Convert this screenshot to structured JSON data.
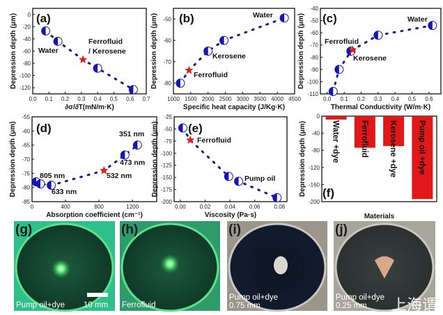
{
  "colors": {
    "marker": "#1515b0",
    "star": "#e02020",
    "bar": "#e01818",
    "fit_line": "#1a1a8a"
  },
  "chart_data": [
    {
      "panel": "(a)",
      "type": "scatter",
      "xlabel": "∂σ/∂T(mN/m·K)",
      "ylabel": "Depression depth (μm)",
      "xlim": [
        0,
        0.7
      ],
      "ylim": [
        -130,
        10
      ],
      "xticks": [
        "0.0",
        "0.1",
        "0.2",
        "0.3",
        "0.4",
        "0.5",
        "0.6",
        "0.7"
      ],
      "yticks": [
        "0",
        "-20",
        "-40",
        "-60",
        "-80",
        "-100",
        "-120"
      ],
      "points": [
        [
          0.08,
          -27
        ],
        [
          0.155,
          -44
        ],
        [
          0.4,
          -88
        ],
        [
          0.62,
          -123
        ]
      ],
      "star": [
        0.31,
        -74
      ],
      "annotations": [
        "Water",
        "Ferrofluid",
        "/ Kerosene"
      ]
    },
    {
      "panel": "(b)",
      "type": "scatter",
      "xlabel": "Specific heat capacity (J/Kg·K)",
      "ylabel": "Depression depth (μm)",
      "xlim": [
        1000,
        4500
      ],
      "ylim": [
        -85,
        -45
      ],
      "xticks": [
        "1000",
        "1500",
        "2000",
        "2500",
        "3000",
        "3500",
        "4000",
        "4500"
      ],
      "yticks": [
        "-50",
        "-60",
        "-70",
        "-80"
      ],
      "points": [
        [
          1200,
          -80
        ],
        [
          2000,
          -65
        ],
        [
          2460,
          -60
        ],
        [
          4200,
          -49.5
        ]
      ],
      "star": [
        1450,
        -74
      ],
      "annotations": [
        "Water",
        "Kerosene",
        "Ferrofluid"
      ]
    },
    {
      "panel": "(c)",
      "type": "scatter",
      "xlabel": "Thermal Conductivity (W/m·K)",
      "ylabel": "Depression depth (μm)",
      "xlim": [
        -0.04,
        0.67
      ],
      "ylim": [
        -110,
        -40
      ],
      "xticks": [
        "0.0",
        "0.1",
        "0.2",
        "0.3",
        "0.4",
        "0.5",
        "0.6"
      ],
      "yticks": [
        "-40",
        "-50",
        "-60",
        "-70",
        "-80",
        "-90",
        "-100",
        "-110"
      ],
      "points": [
        [
          0.035,
          -108
        ],
        [
          0.07,
          -90
        ],
        [
          0.14,
          -75
        ],
        [
          0.3,
          -62
        ],
        [
          0.62,
          -54
        ]
      ],
      "star": [
        0.15,
        -74
      ],
      "annotations": [
        "Water",
        "Ferrofluid",
        "Kerosene"
      ]
    },
    {
      "panel": "(d)",
      "type": "scatter",
      "xlabel": "Absorption coefficient (cm⁻¹)",
      "ylabel": "Depression depth (μm)",
      "xlim": [
        0,
        1490
      ],
      "ylim": [
        -85,
        -55
      ],
      "xticks": [
        "0",
        "400",
        "800",
        "1200"
      ],
      "yticks": [
        "-55",
        "-60",
        "-65",
        "-70",
        "-75",
        "-80",
        "-85"
      ],
      "points": [
        [
          50,
          -78
        ],
        [
          100,
          -78.7
        ],
        [
          230,
          -79.2
        ],
        [
          1110,
          -68.5
        ],
        [
          1260,
          -65
        ]
      ],
      "star": [
        860,
        -74
      ],
      "annotations": [
        "351 nm",
        "473 nm",
        "532 nm",
        "805 nm",
        "633 nm"
      ]
    },
    {
      "panel": "(e)",
      "type": "scatter",
      "xlabel": "Viscosity (Pa·s)",
      "ylabel": "Depression depth (μm)",
      "xlim": [
        -0.005,
        0.086
      ],
      "ylim": [
        -200,
        -25
      ],
      "xticks": [
        "0.00",
        "0.02",
        "0.04",
        "0.06",
        "0.08"
      ],
      "yticks": [
        "-25",
        "-50",
        "-75",
        "-100",
        "-125",
        "-150",
        "-175",
        "-200"
      ],
      "points": [
        [
          0.002,
          -48
        ],
        [
          0.039,
          -148
        ],
        [
          0.047,
          -158
        ],
        [
          0.078,
          -192
        ]
      ],
      "star": [
        0.008,
        -73
      ],
      "annotations": [
        "Ferrofluid",
        "Pump oil"
      ]
    },
    {
      "panel": "(f)",
      "type": "bar",
      "xlabel": "Materials",
      "ylabel": "Depression depth (μm)",
      "ylim": [
        -200,
        0
      ],
      "yticks": [
        "0",
        "-40",
        "-80",
        "-120",
        "-160",
        "-200"
      ],
      "categories": [
        "Water +dye",
        "Ferrofluid",
        "Kerosene +dye",
        "Pump oil +dye"
      ],
      "values": [
        -8,
        -74,
        -70,
        -194
      ]
    }
  ],
  "photos": [
    {
      "panel": "(g)",
      "caption": "Pump oil+dye",
      "scale_bar": "10 mm"
    },
    {
      "panel": "(h)",
      "caption": "Ferrofluid"
    },
    {
      "panel": "(i)",
      "caption": "Pump oil+dye",
      "caption2": "0.75 mm"
    },
    {
      "panel": "(j)",
      "caption": "Pump oil+dye",
      "caption2": "0.25 mm"
    }
  ],
  "watermark": "上海谓"
}
